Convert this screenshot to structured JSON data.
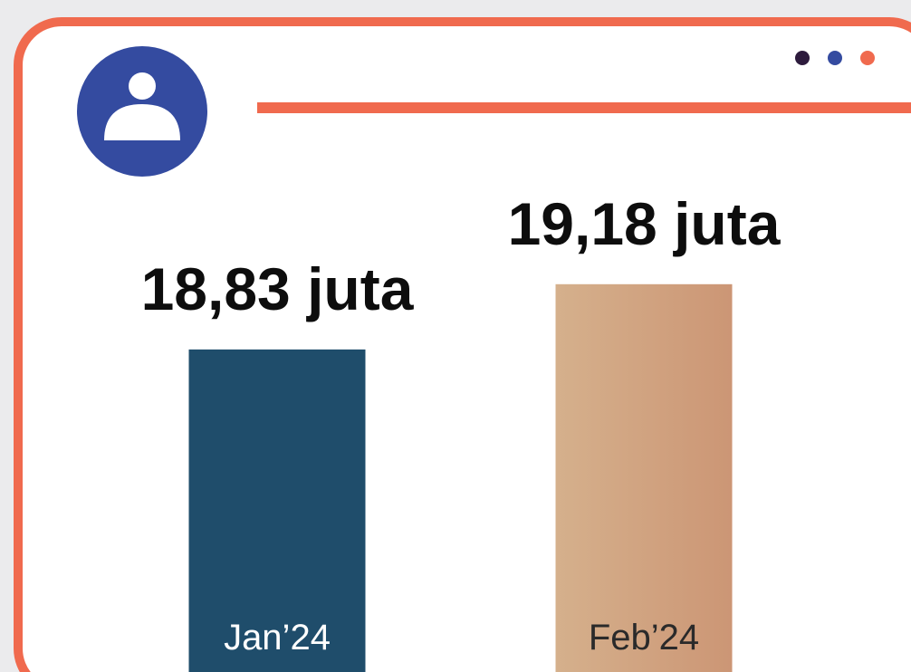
{
  "chart_data": {
    "type": "bar",
    "categories": [
      "Jan’24",
      "Feb’24"
    ],
    "values": [
      18.83,
      19.18
    ],
    "value_labels": [
      "18,83 juta",
      "19,18 juta"
    ],
    "ylim": [
      17.1,
      20
    ]
  }
}
